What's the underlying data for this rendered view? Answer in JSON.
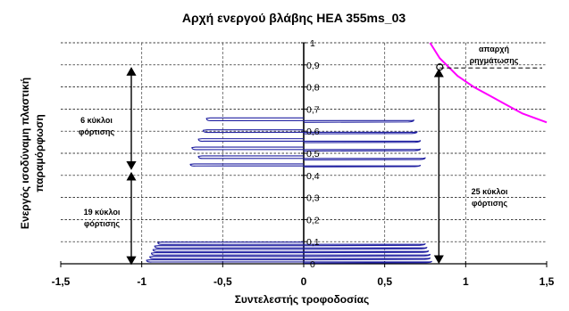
{
  "chart_data": {
    "type": "line",
    "title": "Αρχή ενεργού βλάβης HEA 355ms_03",
    "xlabel": "Συντελεστής τροφοδοσίας",
    "ylabel_lines": [
      "Ενεργός ισοδύναμη πλαστική",
      "παραμόρφωση"
    ],
    "xlim": [
      -1.5,
      1.5
    ],
    "ylim": [
      0,
      1
    ],
    "x_ticks": [
      "-1,5",
      "-1",
      "-0,5",
      "0",
      "0,5",
      "1",
      "1,5"
    ],
    "x_tick_values": [
      -1.5,
      -1,
      -0.5,
      0,
      0.5,
      1,
      1.5
    ],
    "y_ticks": [
      "0",
      "0,1",
      "0,2",
      "0,3",
      "0,4",
      "0,5",
      "0,6",
      "0,7",
      "0,8",
      "0,9",
      "1"
    ],
    "y_tick_values": [
      0,
      0.1,
      0.2,
      0.3,
      0.4,
      0.5,
      0.6,
      0.7,
      0.8,
      0.9,
      1
    ],
    "grid": {
      "horizontal": true,
      "vertical_dashed_at": [
        -1,
        -0.5,
        0.5,
        1
      ]
    },
    "series": [
      {
        "color": "#1f1fa0",
        "style": "hysteresis loops",
        "cycles": [
          {
            "y_start": 0.003,
            "y_end": 0.018,
            "x_min": -0.97,
            "x_max": 0.79
          },
          {
            "y_start": 0.018,
            "y_end": 0.034,
            "x_min": -0.95,
            "x_max": 0.78
          },
          {
            "y_start": 0.034,
            "y_end": 0.05,
            "x_min": -0.94,
            "x_max": 0.78
          },
          {
            "y_start": 0.05,
            "y_end": 0.066,
            "x_min": -0.93,
            "x_max": 0.77
          },
          {
            "y_start": 0.066,
            "y_end": 0.082,
            "x_min": -0.92,
            "x_max": 0.76
          },
          {
            "y_start": 0.082,
            "y_end": 0.098,
            "x_min": -0.9,
            "x_max": 0.75
          },
          {
            "y_start": 0.438,
            "y_end": 0.452,
            "x_min": -0.7,
            "x_max": 0.72
          },
          {
            "y_start": 0.47,
            "y_end": 0.488,
            "x_min": -0.65,
            "x_max": 0.75
          },
          {
            "y_start": 0.51,
            "y_end": 0.528,
            "x_min": -0.69,
            "x_max": 0.72
          },
          {
            "y_start": 0.548,
            "y_end": 0.566,
            "x_min": -0.65,
            "x_max": 0.72
          },
          {
            "y_start": 0.588,
            "y_end": 0.606,
            "x_min": -0.62,
            "x_max": 0.7
          },
          {
            "y_start": 0.64,
            "y_end": 0.66,
            "x_min": -0.6,
            "x_max": 0.68
          }
        ]
      },
      {
        "color": "#ff00ff",
        "style": "solid",
        "x": [
          0.78,
          0.84,
          0.95,
          1.05,
          1.15,
          1.25,
          1.35,
          1.5
        ],
        "y": [
          1.0,
          0.93,
          0.85,
          0.8,
          0.76,
          0.72,
          0.68,
          0.64
        ]
      }
    ],
    "marker": {
      "x": 0.84,
      "y": 0.89
    },
    "annotations": {
      "initiation": [
        "απαρχή",
        "ρηγμάτωσης"
      ],
      "group_a": [
        "6 κύκλοι",
        "φόρτισης"
      ],
      "group_b": [
        "19 κύκλοι",
        "φόρτισης"
      ],
      "group_c": [
        "25 κύκλοι",
        "φόρτισης"
      ]
    },
    "legend": "none"
  },
  "colors": {
    "loops": "#1f1fa0",
    "envelope": "#ff00ff",
    "grid": "#000000"
  }
}
